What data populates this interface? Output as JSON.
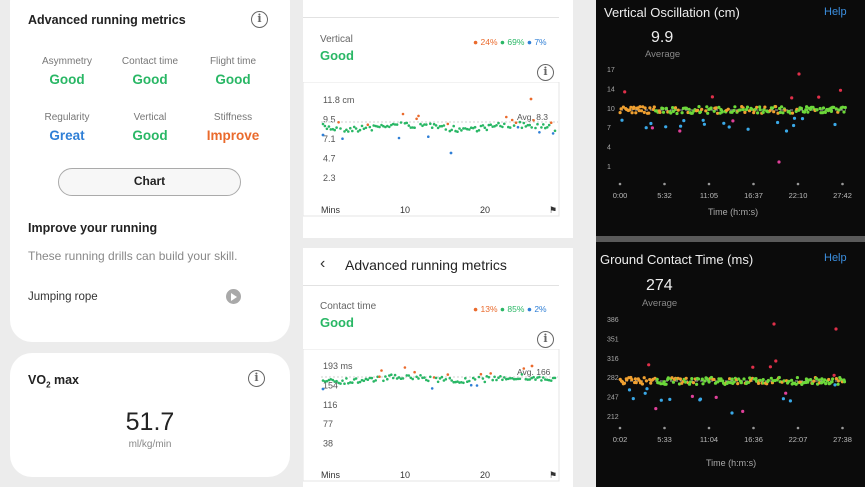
{
  "advanced": {
    "title": "Advanced running metrics",
    "metrics": [
      {
        "label": "Asymmetry",
        "value": "Good",
        "status": "good"
      },
      {
        "label": "Contact time",
        "value": "Good",
        "status": "good"
      },
      {
        "label": "Flight time",
        "value": "Good",
        "status": "good"
      },
      {
        "label": "Regularity",
        "value": "Great",
        "status": "great"
      },
      {
        "label": "Vertical",
        "value": "Good",
        "status": "good"
      },
      {
        "label": "Stiffness",
        "value": "Improve",
        "status": "improve"
      }
    ],
    "chart_button": "Chart"
  },
  "improve": {
    "title": "Improve your running",
    "subtitle": "These running drills can build your skill.",
    "drill": "Jumping rope"
  },
  "vo2": {
    "title_main": "VO",
    "title_sub": "2",
    "title_tail": " max",
    "value": "51.7",
    "unit": "ml/kg/min"
  },
  "mid": {
    "header": "Advanced running metrics",
    "vertical": {
      "label": "Vertical",
      "status": "Good",
      "legend": [
        "24%",
        "69%",
        "7%"
      ],
      "avg": "Avg. 8.3",
      "xlabel": "Mins"
    },
    "contact": {
      "label": "Contact time",
      "status": "Good",
      "legend": [
        "13%",
        "85%",
        "2%"
      ],
      "avg": "Avg. 166",
      "xlabel": "Mins"
    }
  },
  "dark": {
    "vo_title": "Vertical Oscillation (cm)",
    "gct_title": "Ground Contact Time (ms)",
    "help": "Help",
    "vo_value": "9.9",
    "gct_value": "274",
    "avg_label": "Average",
    "x_title": "Time (h:m:s)"
  },
  "colors": {
    "good": "#29b765",
    "great": "#2f7fd6",
    "improve": "#ea6a2c",
    "help": "#3b8fe0"
  },
  "chart_data": [
    {
      "type": "scatter",
      "title": "Vertical",
      "xlabel": "Mins",
      "x_ticks": [
        "10",
        "20"
      ],
      "y_ticks": [
        "11.8 cm",
        "9.5",
        "7.1",
        "4.7",
        "2.3"
      ],
      "ylim": [
        2.3,
        11.8
      ],
      "series": [
        {
          "name": "24%",
          "color": "#ea6a2c"
        },
        {
          "name": "69%",
          "color": "#29b765"
        },
        {
          "name": "7%",
          "color": "#2f7fd6"
        }
      ],
      "average": 8.3
    },
    {
      "type": "scatter",
      "title": "Contact time",
      "xlabel": "Mins",
      "x_ticks": [
        "10",
        "20"
      ],
      "y_ticks": [
        "193 ms",
        "154",
        "116",
        "77",
        "38"
      ],
      "ylim": [
        38,
        193
      ],
      "series": [
        {
          "name": "13%",
          "color": "#ea6a2c"
        },
        {
          "name": "85%",
          "color": "#29b765"
        },
        {
          "name": "2%",
          "color": "#2f7fd6"
        }
      ],
      "average": 166
    },
    {
      "type": "scatter",
      "title": "Vertical Oscillation (cm)",
      "xlabel": "Time (h:m:s)",
      "x_ticks": [
        "0:00",
        "5:32",
        "11:05",
        "16:37",
        "22:10",
        "27:42"
      ],
      "y_ticks": [
        "17",
        "14",
        "10",
        "7",
        "4",
        "1"
      ],
      "ylim": [
        1,
        17
      ],
      "average": 9.9
    },
    {
      "type": "scatter",
      "title": "Ground Contact Time (ms)",
      "xlabel": "Time (h:m:s)",
      "x_ticks": [
        "0:02",
        "5:33",
        "11:04",
        "16:36",
        "22:07",
        "27:38"
      ],
      "y_ticks": [
        "386",
        "351",
        "316",
        "282",
        "247",
        "212"
      ],
      "ylim": [
        212,
        386
      ],
      "average": 274
    }
  ]
}
